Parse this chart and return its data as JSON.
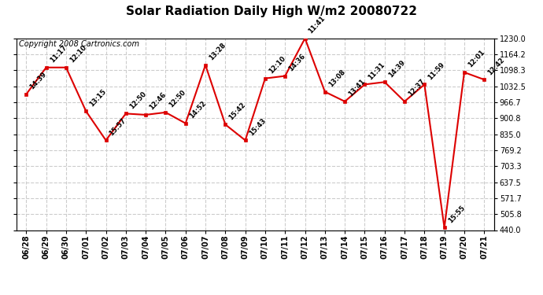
{
  "title": "Solar Radiation Daily High W/m2 20080722",
  "copyright": "Copyright 2008 Cartronics.com",
  "dates": [
    "06/28",
    "06/29",
    "06/30",
    "07/01",
    "07/02",
    "07/03",
    "07/04",
    "07/05",
    "07/06",
    "07/07",
    "07/08",
    "07/09",
    "07/10",
    "07/11",
    "07/12",
    "07/13",
    "07/14",
    "07/15",
    "07/16",
    "07/17",
    "07/18",
    "07/19",
    "07/20",
    "07/21"
  ],
  "values": [
    1000,
    1110,
    1110,
    930,
    810,
    920,
    915,
    925,
    880,
    1120,
    875,
    810,
    1065,
    1075,
    1230,
    1010,
    970,
    1040,
    1050,
    970,
    1040,
    450,
    1090,
    1060
  ],
  "time_labels": [
    "14:39",
    "11:17",
    "12:10",
    "13:15",
    "15:57",
    "12:50",
    "12:46",
    "12:50",
    "14:52",
    "13:28",
    "15:42",
    "15:43",
    "12:10",
    "14:36",
    "11:41",
    "13:08",
    "13:41",
    "11:31",
    "14:39",
    "12:37",
    "11:59",
    "15:55",
    "12:01",
    "12:42"
  ],
  "ylim": [
    440,
    1230
  ],
  "yticks": [
    440.0,
    505.8,
    571.7,
    637.5,
    703.3,
    769.2,
    835.0,
    900.8,
    966.7,
    1032.5,
    1098.3,
    1164.2,
    1230.0
  ],
  "line_color": "#dd0000",
  "marker_color": "#dd0000",
  "bg_color": "#ffffff",
  "grid_color": "#cccccc",
  "title_fontsize": 11,
  "annotation_fontsize": 6,
  "tick_fontsize": 7,
  "copyright_fontsize": 7
}
